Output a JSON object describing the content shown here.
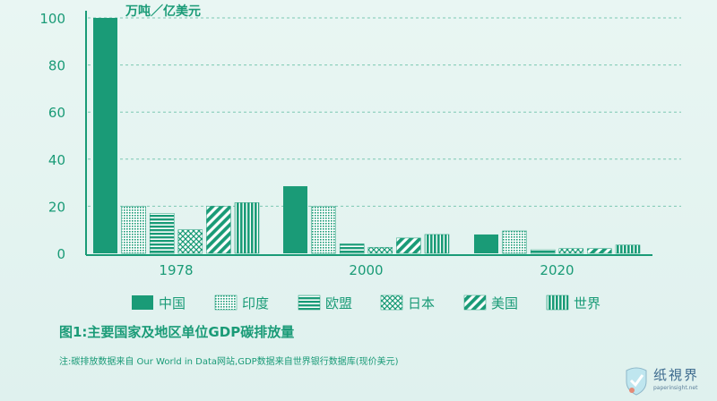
{
  "chart_data": {
    "type": "bar",
    "ylabel": "万吨／亿美元",
    "ylim": [
      0,
      100
    ],
    "yticks": [
      0,
      20,
      40,
      60,
      80,
      100
    ],
    "grid": true,
    "legend_position": "bottom",
    "categories": [
      "1978",
      "2000",
      "2020"
    ],
    "series": [
      {
        "name": "中国",
        "values": [
          100,
          28.5,
          8
        ],
        "pattern": "solid"
      },
      {
        "name": "印度",
        "values": [
          20,
          20,
          9.5
        ],
        "pattern": "dots"
      },
      {
        "name": "欧盟",
        "values": [
          17,
          4,
          1.5
        ],
        "pattern": "hlines"
      },
      {
        "name": "日本",
        "values": [
          10,
          2.5,
          2
        ],
        "pattern": "crosshatch"
      },
      {
        "name": "美国",
        "values": [
          20,
          6.5,
          2
        ],
        "pattern": "diagonal"
      },
      {
        "name": "世界",
        "values": [
          21.5,
          8,
          3.5
        ],
        "pattern": "vlines"
      }
    ],
    "color": "#1a9b77"
  },
  "caption": "图1:主要国家及地区单位GDP碳排放量",
  "note": "注:碳排放数据来自 Our World in Data网站,GDP数据来自世界银行数据库(现价美元)",
  "watermark": {
    "text": "纸視界",
    "url": "paperinsight.net"
  }
}
